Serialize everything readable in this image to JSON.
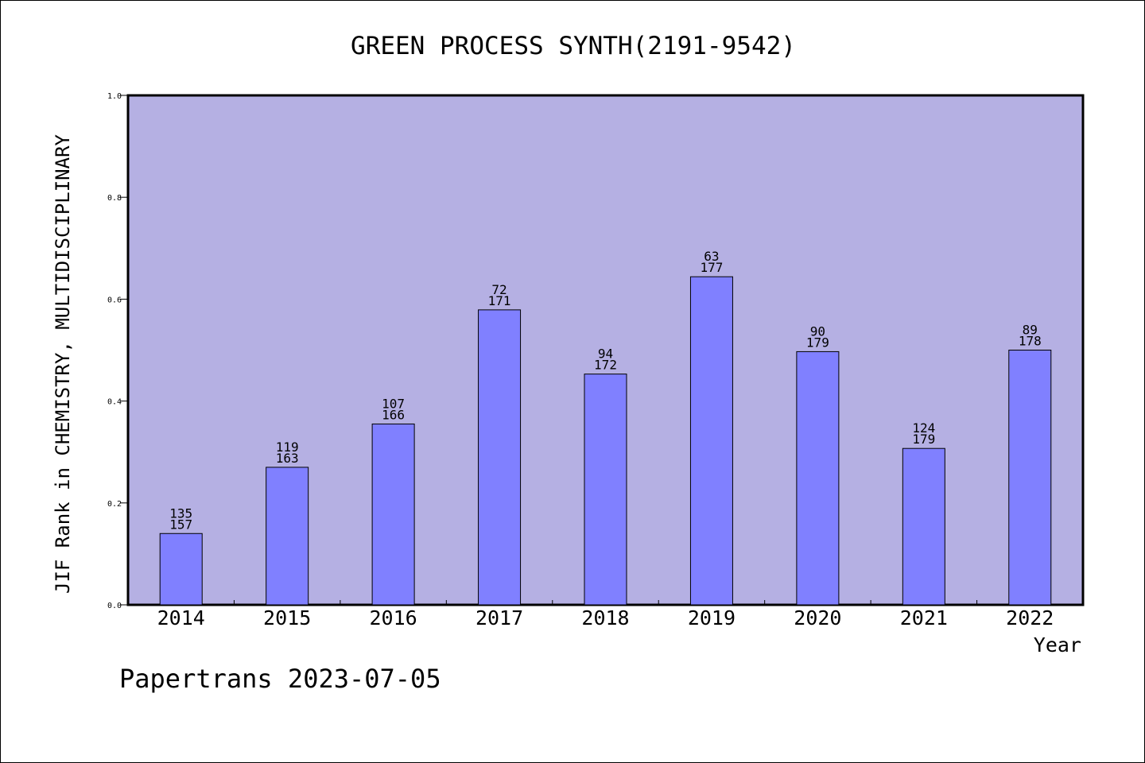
{
  "chart_data": {
    "type": "bar",
    "title": "GREEN PROCESS SYNTH(2191-9542)",
    "xlabel": "Year",
    "ylabel": "JIF Rank in CHEMISTRY, MULTIDISCIPLINARY",
    "ylim": [
      0,
      1.0
    ],
    "yticks": [
      "0.0",
      "0.2",
      "0.4",
      "0.6",
      "0.8",
      "1.0"
    ],
    "grid": false,
    "categories": [
      "2014",
      "2015",
      "2016",
      "2017",
      "2018",
      "2019",
      "2020",
      "2021",
      "2022"
    ],
    "values": [
      0.14,
      0.27,
      0.355,
      0.579,
      0.453,
      0.644,
      0.497,
      0.307,
      0.5
    ],
    "rank_labels": [
      "135",
      "119",
      "107",
      "72",
      "94",
      "63",
      "90",
      "124",
      "89"
    ],
    "total_labels": [
      "157",
      "163",
      "166",
      "171",
      "172",
      "177",
      "179",
      "179",
      "178"
    ]
  },
  "footer": {
    "text": "Papertrans 2023-07-05"
  },
  "colors": {
    "plot_background": "#b5b0e3",
    "bar_fill": "#8080ff",
    "bar_stroke": "#000000"
  }
}
